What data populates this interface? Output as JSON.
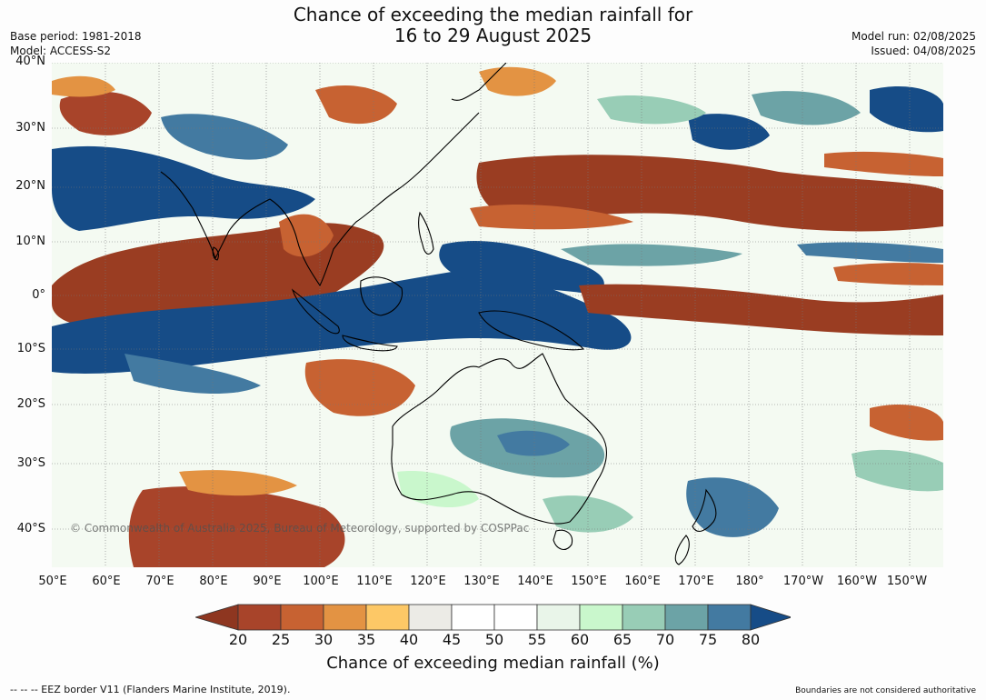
{
  "title_line1": "Chance of exceeding the median rainfall for",
  "title_line2": "16 to 29 August 2025",
  "base_period": "Base period: 1981-2018",
  "model": "Model: ACCESS-S2",
  "model_run": "Model run: 02/08/2025",
  "issued": "Issued: 04/08/2025",
  "lat_labels": [
    "40°N",
    "30°N",
    "20°N",
    "10°N",
    "0°",
    "10°S",
    "20°S",
    "30°S",
    "40°S"
  ],
  "lon_labels": [
    "50°E",
    "60°E",
    "70°E",
    "80°E",
    "90°E",
    "100°E",
    "110°E",
    "120°E",
    "130°E",
    "140°E",
    "150°E",
    "160°E",
    "170°E",
    "180°",
    "170°W",
    "160°W",
    "150°W"
  ],
  "copyright": "© Commonwealth of Australia 2025, Bureau of Meteorology, supported by COSPPac",
  "colorbar": {
    "ticks": [
      "20",
      "25",
      "30",
      "35",
      "40",
      "45",
      "50",
      "55",
      "60",
      "65",
      "70",
      "75",
      "80"
    ],
    "colors": [
      "#8e3620",
      "#a8442a",
      "#c76232",
      "#e39343",
      "#fdc866",
      "#ecebe6",
      "#ffffff",
      "#ffffff",
      "#e9f5e9",
      "#c9f7cc",
      "#98cdb6",
      "#6ca3a6",
      "#437aa1",
      "#164c87"
    ],
    "label": "Chance of exceeding median rainfall (%)"
  },
  "footer_left": "--  --  -- EEZ border V11 (Flanders Marine Institute, 2019).",
  "footer_right": "Boundaries are not considered authoritative"
}
